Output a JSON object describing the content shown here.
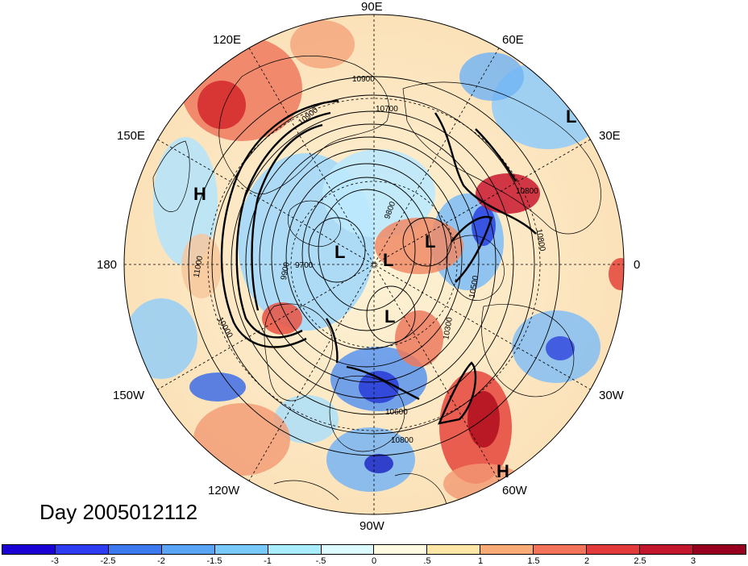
{
  "map": {
    "day_label": "Day 2005012112",
    "longitude_labels": {
      "n90e": "90E",
      "n60e": "60E",
      "n30e": "30E",
      "zero": "0",
      "w30": "30W",
      "w60": "60W",
      "w90": "90W",
      "w120": "120W",
      "w150": "150W",
      "e180": "180",
      "e150": "150E",
      "e120": "120E"
    },
    "pressure_centers": [
      {
        "letter": "H"
      },
      {
        "letter": "L"
      },
      {
        "letter": "L"
      },
      {
        "letter": "L"
      },
      {
        "letter": "L"
      },
      {
        "letter": "L"
      },
      {
        "letter": "H"
      }
    ],
    "contour_labels": [
      "10900",
      "10700",
      "9800",
      "9700",
      "9900",
      "11000",
      "10500",
      "10800",
      "10300",
      "10600",
      "10800",
      "10900",
      "10800",
      "10000"
    ],
    "colorbar": {
      "colors": [
        "#1a00d2",
        "#2d3cf0",
        "#3c78ee",
        "#5aa4f5",
        "#78c8fa",
        "#a8ecfd",
        "#dcfbff",
        "#fffbe0",
        "#fde6a6",
        "#f8ab76",
        "#f2735a",
        "#e23a3a",
        "#c1162c",
        "#96001e"
      ],
      "ticks": [
        "-3",
        "-2.5",
        "-2",
        "-1.5",
        "-1",
        "-.5",
        "0",
        ".5",
        "1",
        "1.5",
        "2",
        "2.5",
        "3"
      ]
    }
  }
}
